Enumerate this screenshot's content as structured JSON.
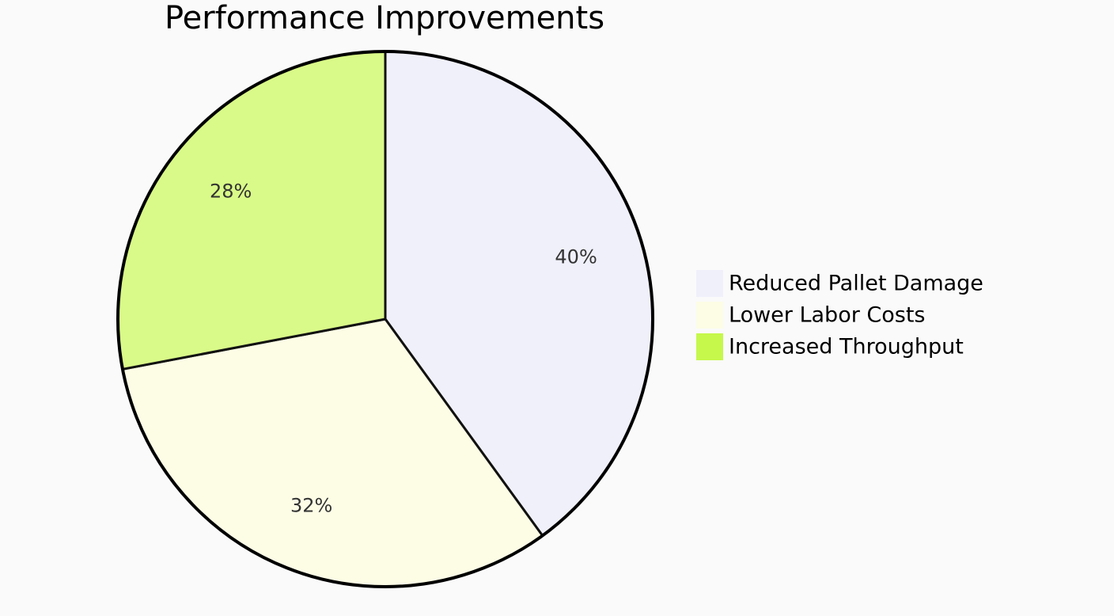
{
  "chart_data": {
    "type": "pie",
    "title": "Performance Improvements",
    "labels": [
      "Reduced Pallet Damage",
      "Lower Labor Costs",
      "Increased Throughput"
    ],
    "values": [
      40,
      32,
      28
    ],
    "display_labels": [
      "40%",
      "32%",
      "28%"
    ],
    "colors": [
      "#f0f0fb",
      "#fdfde6",
      "#d9fa88"
    ],
    "legend_colors": [
      "#f0f0fb",
      "#fdfde6",
      "#c5f84b"
    ],
    "legend_placement": "right",
    "start_angle": "top, clockwise"
  }
}
